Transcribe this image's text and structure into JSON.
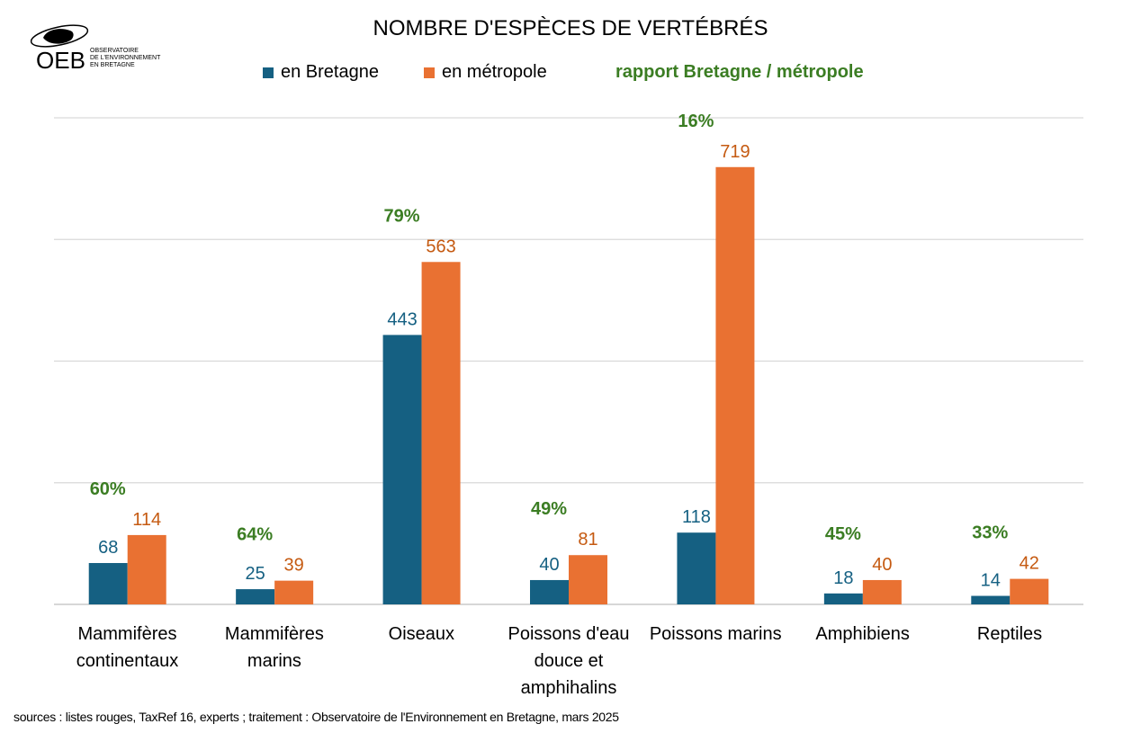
{
  "chart_data": {
    "type": "bar",
    "title": "NOMBRE D'ESPÈCES DE VERTÉBRÉS",
    "categories": [
      "Mammifères continentaux",
      "Mammifères marins",
      "Oiseaux",
      "Poissons d'eau douce et amphihalins",
      "Poissons marins",
      "Amphibiens",
      "Reptiles"
    ],
    "series": [
      {
        "name": "en Bretagne",
        "color": "#156082",
        "values": [
          68,
          25,
          443,
          40,
          118,
          18,
          14
        ]
      },
      {
        "name": "en métropole",
        "color": "#E97132",
        "values": [
          114,
          39,
          563,
          81,
          719,
          40,
          42
        ]
      }
    ],
    "ratio": {
      "name": "rapport Bretagne / métropole",
      "color": "#3B7D23",
      "labels": [
        "60%",
        "64%",
        "79%",
        "49%",
        "16%",
        "45%",
        "33%"
      ]
    },
    "ylim": [
      0,
      800
    ],
    "grid": true,
    "legend_position": "top",
    "source": "sources : listes rouges, TaxRef 16, experts ; traitement :  Observatoire de l'Environnement en Bretagne, mars 2025"
  },
  "logo": {
    "text": "OEB",
    "subtitle": "OBSERVATOIRE DE L'ENVIRONNEMENT EN BRETAGNE"
  }
}
